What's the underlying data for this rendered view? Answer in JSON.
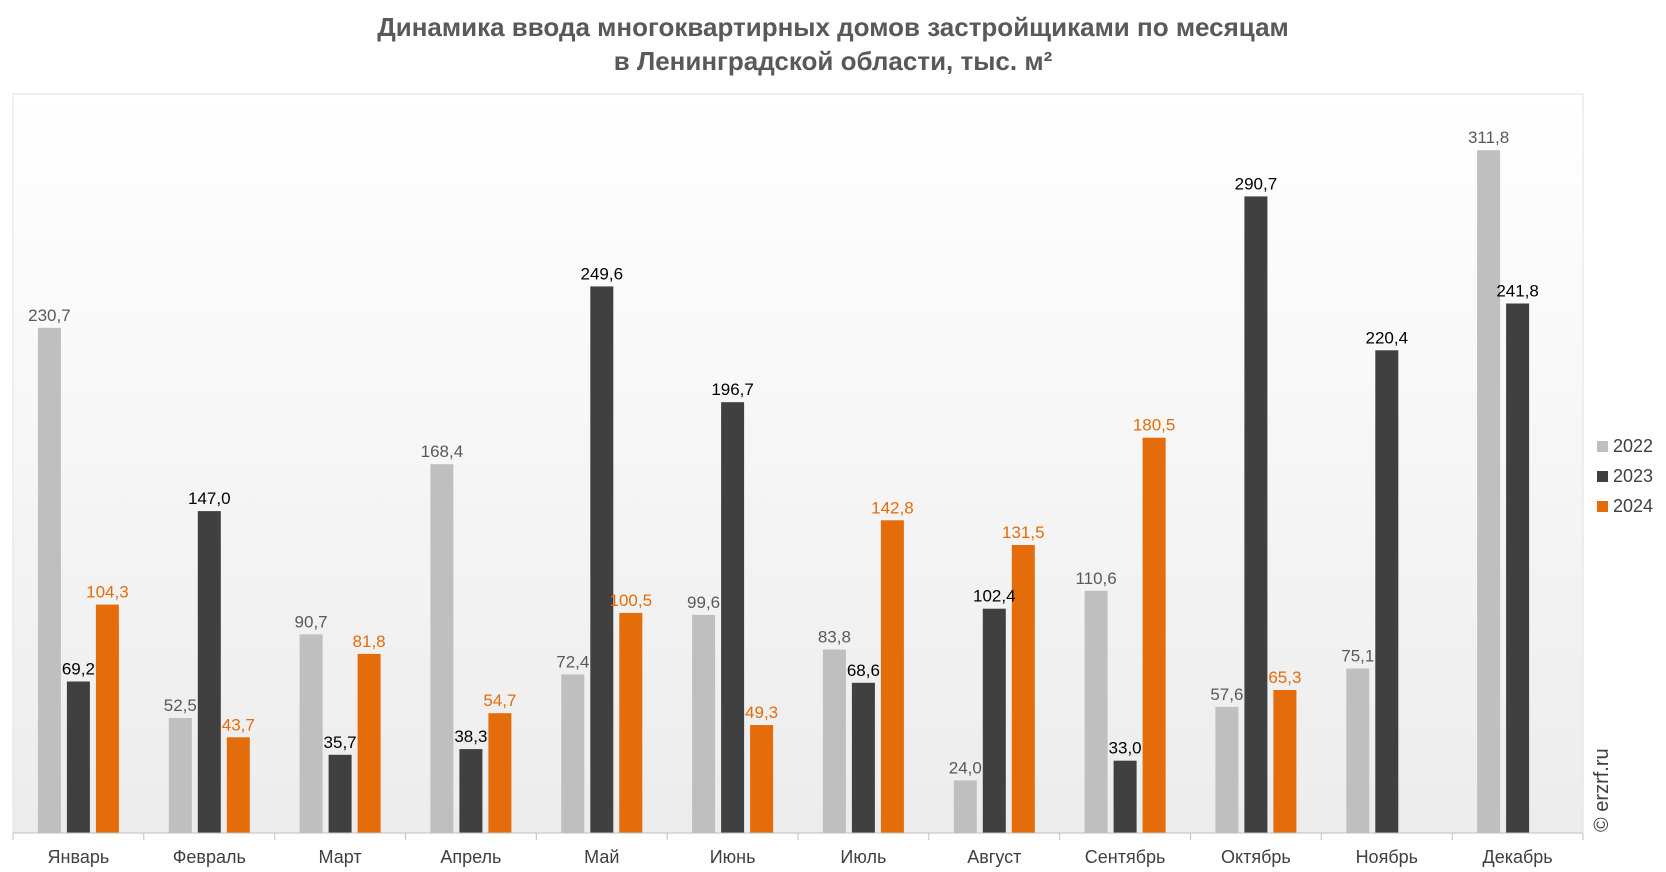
{
  "title_line1": "Динамика ввода многоквартирных домов застройщиками по месяцам",
  "title_line2": "в Ленинградской области, тыс. м²",
  "watermark": "© erzrf.ru",
  "colors": {
    "2022": "#bfbfbf",
    "2023": "#404040",
    "2024": "#e46c0a",
    "label_2022": "#595959",
    "label_2023": "#000000",
    "label_2024": "#e46c0a",
    "axis_text": "#404040"
  },
  "chart_data": {
    "type": "bar",
    "title": "Динамика ввода многоквартирных домов застройщиками по месяцам в Ленинградской области, тыс. м²",
    "categories": [
      "Январь",
      "Февраль",
      "Март",
      "Апрель",
      "Май",
      "Июнь",
      "Июль",
      "Август",
      "Сентябрь",
      "Октябрь",
      "Ноябрь",
      "Декабрь"
    ],
    "series": [
      {
        "name": "2022",
        "values": [
          230.7,
          52.5,
          90.7,
          168.4,
          72.4,
          99.6,
          83.8,
          24.0,
          110.6,
          57.6,
          75.1,
          311.8
        ]
      },
      {
        "name": "2023",
        "values": [
          69.2,
          147.0,
          35.7,
          38.3,
          249.6,
          196.7,
          68.6,
          102.4,
          33.0,
          290.7,
          220.4,
          241.8
        ]
      },
      {
        "name": "2024",
        "values": [
          104.3,
          43.7,
          81.8,
          54.7,
          100.5,
          49.3,
          142.8,
          131.5,
          180.5,
          65.3,
          null,
          null
        ]
      }
    ],
    "data_labels": [
      [
        "230,7",
        "52,5",
        "90,7",
        "168,4",
        "72,4",
        "99,6",
        "83,8",
        "24,0",
        "110,6",
        "57,6",
        "75,1",
        "311,8"
      ],
      [
        "69,2",
        "147,0",
        "35,7",
        "38,3",
        "249,6",
        "196,7",
        "68,6",
        "102,4",
        "33,0",
        "290,7",
        "220,4",
        "241,8"
      ],
      [
        "104,3",
        "43,7",
        "81,8",
        "54,7",
        "100,5",
        "49,3",
        "142,8",
        "131,5",
        "180,5",
        "65,3",
        "",
        ""
      ]
    ],
    "ylim": [
      0,
      350
    ],
    "y_axis_visible": false,
    "grid": false,
    "legend_position": "right"
  }
}
